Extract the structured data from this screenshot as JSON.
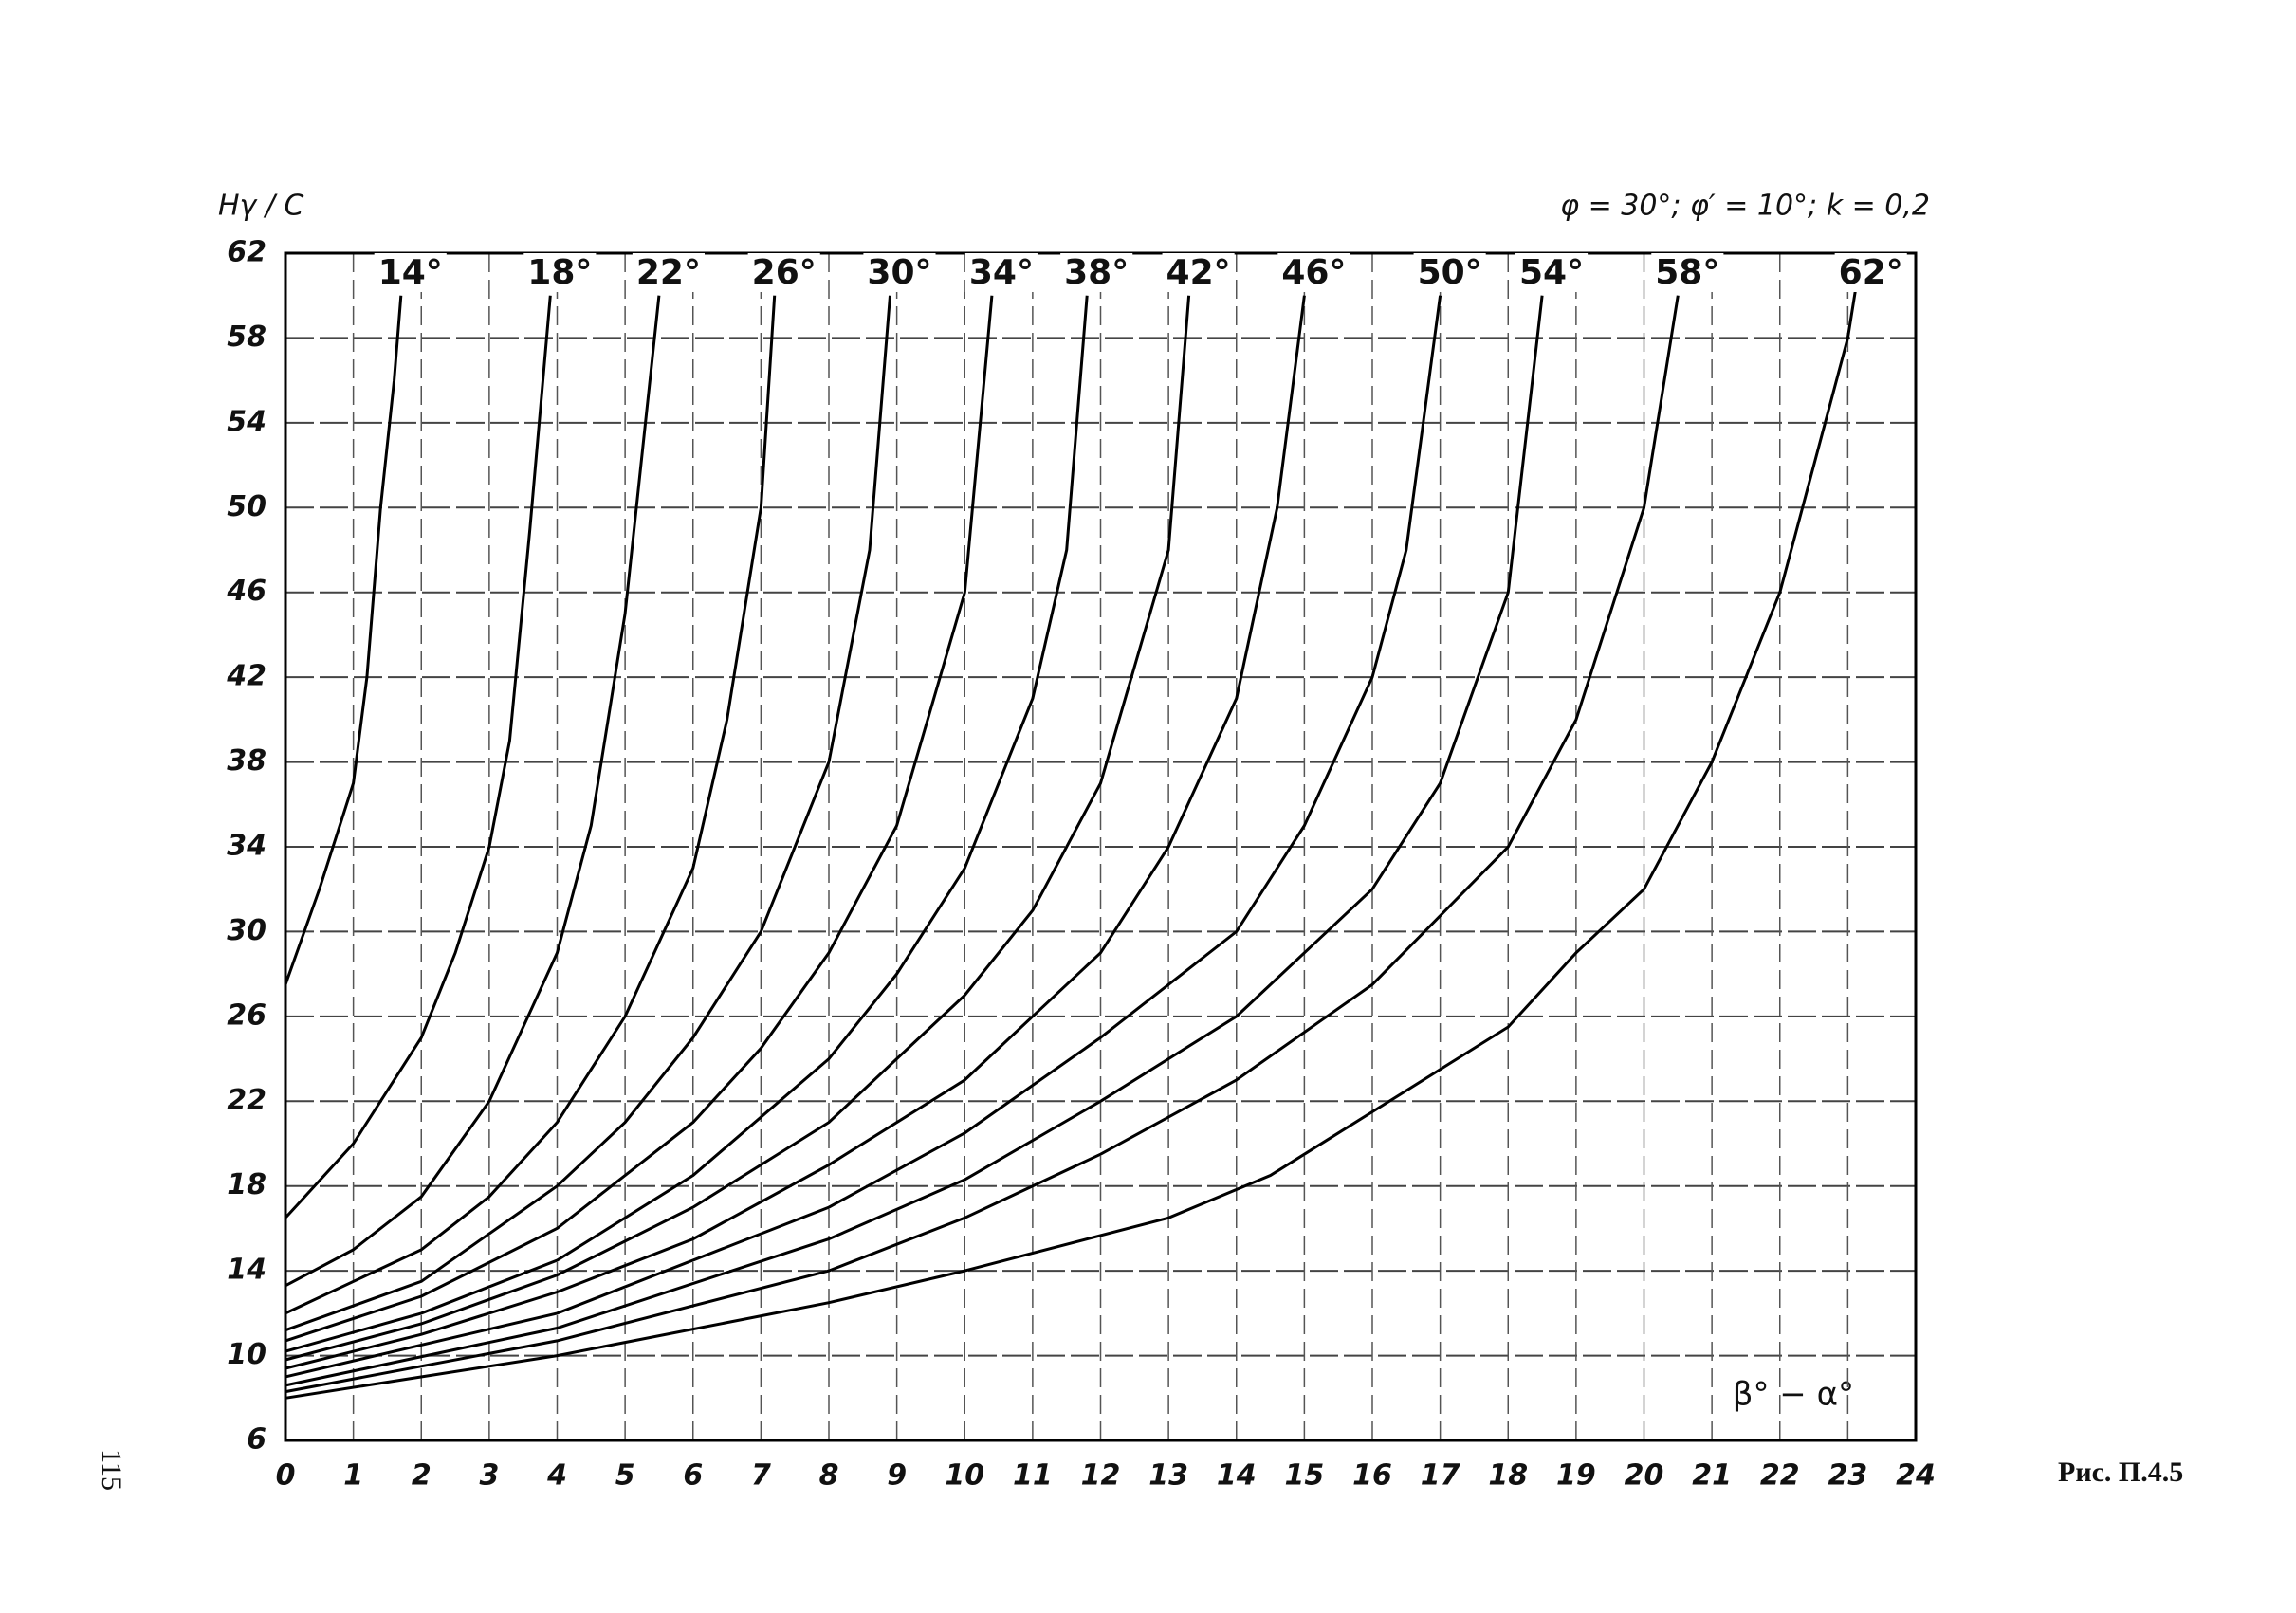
{
  "chart_data": {
    "type": "line",
    "y_label": "Hγ / C",
    "subtitle": "φ = 30°; φ′ = 10°; k = 0,2",
    "x_label": "β° − α°",
    "caption": "Рис. П.4.5",
    "page_number": "115",
    "xlim": [
      0,
      24
    ],
    "ylim": [
      6,
      62
    ],
    "xticks": [
      0,
      1,
      2,
      3,
      4,
      5,
      6,
      7,
      8,
      9,
      10,
      11,
      12,
      13,
      14,
      15,
      16,
      17,
      18,
      19,
      20,
      21,
      22,
      23,
      24
    ],
    "yticks": [
      6,
      10,
      14,
      18,
      22,
      26,
      30,
      34,
      38,
      42,
      46,
      50,
      54,
      58,
      62
    ],
    "grid": true,
    "series": [
      {
        "name": "14°",
        "color": "#000000",
        "x": [
          0,
          0.5,
          1,
          1.2,
          1.4,
          1.6,
          1.7
        ],
        "values": [
          27.5,
          32,
          37,
          42,
          50,
          56,
          60
        ]
      },
      {
        "name": "18°",
        "color": "#000000",
        "x": [
          0,
          1,
          2,
          2.5,
          3,
          3.3,
          3.6,
          3.9
        ],
        "values": [
          16.5,
          20,
          25,
          29,
          34,
          39,
          49,
          60
        ]
      },
      {
        "name": "22°",
        "color": "#000000",
        "x": [
          0,
          1,
          2,
          3,
          4,
          4.5,
          5,
          5.5
        ],
        "values": [
          13.3,
          15,
          17.5,
          22,
          29,
          35,
          45,
          60
        ]
      },
      {
        "name": "26°",
        "color": "#000000",
        "x": [
          0,
          2,
          3,
          4,
          5,
          6,
          6.5,
          7,
          7.2
        ],
        "values": [
          12,
          15,
          17.5,
          21,
          26,
          33,
          40,
          50,
          60
        ]
      },
      {
        "name": "30°",
        "color": "#000000",
        "x": [
          0,
          2,
          4,
          5,
          6,
          7,
          8,
          8.6,
          8.9
        ],
        "values": [
          11.2,
          13.5,
          18,
          21,
          25,
          30,
          38,
          48,
          60
        ]
      },
      {
        "name": "34°",
        "color": "#000000",
        "x": [
          0,
          2,
          4,
          6,
          7,
          8,
          9,
          10,
          10.4
        ],
        "values": [
          10.7,
          12.8,
          16,
          21,
          24.5,
          29,
          35,
          46,
          60
        ]
      },
      {
        "name": "38°",
        "color": "#000000",
        "x": [
          0,
          2,
          4,
          6,
          8,
          9,
          10,
          11,
          11.5,
          11.8
        ],
        "values": [
          10.2,
          12,
          14.5,
          18.5,
          24,
          28,
          33,
          41,
          48,
          60
        ]
      },
      {
        "name": "42°",
        "color": "#000000",
        "x": [
          0,
          2,
          4,
          6,
          8,
          10,
          11,
          12,
          13,
          13.3
        ],
        "values": [
          9.8,
          11.5,
          13.8,
          17,
          21,
          27,
          31,
          37,
          48,
          60
        ]
      },
      {
        "name": "46°",
        "color": "#000000",
        "x": [
          0,
          2,
          4,
          6,
          8,
          10,
          12,
          13,
          14,
          14.6,
          15
        ],
        "values": [
          9.4,
          11,
          13,
          15.5,
          19,
          23,
          29,
          34,
          41,
          50,
          60
        ]
      },
      {
        "name": "50°",
        "color": "#000000",
        "x": [
          0,
          4,
          8,
          10,
          12,
          14,
          15,
          16,
          16.5,
          17
        ],
        "values": [
          9,
          12,
          17,
          20.5,
          25,
          30,
          35,
          42,
          48,
          60
        ]
      },
      {
        "name": "54°",
        "color": "#000000",
        "x": [
          0,
          4,
          8,
          10,
          12,
          14,
          16,
          17,
          18,
          18.5
        ],
        "values": [
          8.6,
          11.3,
          15.5,
          18.3,
          22,
          26,
          32,
          37,
          46,
          60
        ]
      },
      {
        "name": "58°",
        "color": "#000000",
        "x": [
          0,
          4,
          8,
          10,
          12,
          14,
          16,
          18,
          19,
          20,
          20.5
        ],
        "values": [
          8.3,
          10.7,
          14,
          16.5,
          19.5,
          23,
          27.5,
          34,
          40,
          50,
          60
        ]
      },
      {
        "name": "62°",
        "color": "#000000",
        "x": [
          0,
          4,
          8,
          10,
          13,
          14.5,
          16,
          18,
          19,
          20,
          21,
          22,
          23,
          23.2
        ],
        "values": [
          8,
          10,
          12.5,
          14,
          16.5,
          18.5,
          21.5,
          25.5,
          29,
          32,
          38,
          46,
          58,
          62
        ]
      }
    ]
  }
}
